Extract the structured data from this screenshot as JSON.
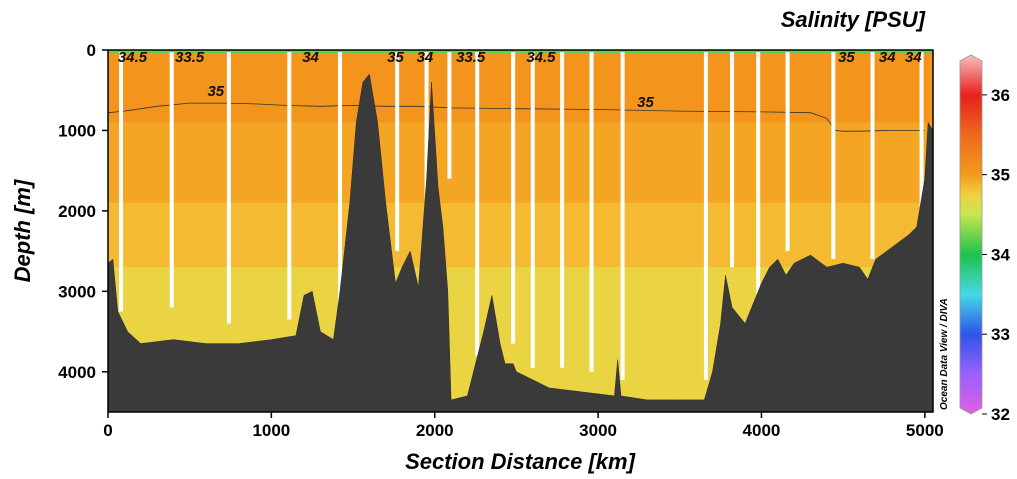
{
  "chart_data": {
    "type": "heatmap",
    "title": "Salinity [PSU]",
    "xlabel": "Section Distance [km]",
    "ylabel": "Depth [m]",
    "xlim": [
      0,
      5050
    ],
    "ylim": [
      0,
      4500
    ],
    "y_inverted": true,
    "x_ticks": [
      0,
      1000,
      2000,
      3000,
      4000,
      5000
    ],
    "y_ticks": [
      0,
      1000,
      2000,
      3000,
      4000
    ],
    "colorbar": {
      "min": 32,
      "max": 36.5,
      "ticks": [
        32,
        33,
        34,
        35,
        36
      ],
      "stops": [
        {
          "v": 32.0,
          "c": "#e060e0"
        },
        {
          "v": 32.5,
          "c": "#9a60ff"
        },
        {
          "v": 33.0,
          "c": "#2d55e8"
        },
        {
          "v": 33.5,
          "c": "#44d8e8"
        },
        {
          "v": 34.0,
          "c": "#1ec24a"
        },
        {
          "v": 34.5,
          "c": "#c8e650"
        },
        {
          "v": 34.75,
          "c": "#f2d040"
        },
        {
          "v": 35.0,
          "c": "#f49a1c"
        },
        {
          "v": 35.5,
          "c": "#ec6a1c"
        },
        {
          "v": 36.0,
          "c": "#e8201c"
        },
        {
          "v": 36.5,
          "c": "#f6c0c0"
        }
      ]
    },
    "salinity_layers": [
      {
        "depth_from": 0,
        "depth_to": 40,
        "value": 34.2
      },
      {
        "depth_from": 40,
        "depth_to": 900,
        "value": 35.05
      },
      {
        "depth_from": 900,
        "depth_to": 1900,
        "value": 34.95
      },
      {
        "depth_from": 1900,
        "depth_to": 2700,
        "value": 34.85
      },
      {
        "depth_from": 2700,
        "depth_to": 4500,
        "value": 34.7
      }
    ],
    "bathymetry": {
      "distance_km": [
        0,
        30,
        60,
        120,
        200,
        400,
        600,
        800,
        1000,
        1150,
        1200,
        1250,
        1300,
        1380,
        1420,
        1480,
        1520,
        1560,
        1600,
        1650,
        1700,
        1760,
        1800,
        1850,
        1900,
        1950,
        1980,
        2020,
        2050,
        2080,
        2100,
        2200,
        2300,
        2350,
        2400,
        2430,
        2480,
        2500,
        2600,
        2700,
        2900,
        3100,
        3120,
        3140,
        3300,
        3500,
        3650,
        3700,
        3750,
        3780,
        3820,
        3900,
        3960,
        4000,
        4050,
        4100,
        4150,
        4200,
        4300,
        4400,
        4500,
        4600,
        4650,
        4700,
        4800,
        4900,
        4950,
        5000,
        5020,
        5050
      ],
      "depth_m": [
        2650,
        2600,
        3250,
        3500,
        3650,
        3600,
        3650,
        3650,
        3600,
        3550,
        3050,
        3000,
        3500,
        3600,
        3000,
        1900,
        900,
        400,
        300,
        900,
        1900,
        2900,
        2700,
        2500,
        2950,
        1600,
        400,
        1700,
        2200,
        3000,
        4350,
        4300,
        3500,
        3050,
        3650,
        3900,
        3900,
        4000,
        4100,
        4200,
        4250,
        4300,
        3850,
        4300,
        4350,
        4350,
        4350,
        4000,
        3400,
        2800,
        3200,
        3400,
        3100,
        2900,
        2700,
        2600,
        2800,
        2650,
        2550,
        2700,
        2650,
        2700,
        2850,
        2600,
        2450,
        2300,
        2200,
        1600,
        900,
        1000
      ]
    },
    "station_casts": [
      {
        "distance_km": 80,
        "depth_m": 3250
      },
      {
        "distance_km": 390,
        "depth_m": 3200
      },
      {
        "distance_km": 740,
        "depth_m": 3400
      },
      {
        "distance_km": 1110,
        "depth_m": 3350
      },
      {
        "distance_km": 1420,
        "depth_m": 3400
      },
      {
        "distance_km": 1770,
        "depth_m": 2500
      },
      {
        "distance_km": 1950,
        "depth_m": 2700
      },
      {
        "distance_km": 2090,
        "depth_m": 1600
      },
      {
        "distance_km": 2260,
        "depth_m": 3800
      },
      {
        "distance_km": 2480,
        "depth_m": 3650
      },
      {
        "distance_km": 2600,
        "depth_m": 3950
      },
      {
        "distance_km": 2780,
        "depth_m": 3950
      },
      {
        "distance_km": 2960,
        "depth_m": 4000
      },
      {
        "distance_km": 3150,
        "depth_m": 4100
      },
      {
        "distance_km": 3660,
        "depth_m": 4100
      },
      {
        "distance_km": 3820,
        "depth_m": 2700
      },
      {
        "distance_km": 3980,
        "depth_m": 3200
      },
      {
        "distance_km": 4160,
        "depth_m": 2500
      },
      {
        "distance_km": 4440,
        "depth_m": 2600
      },
      {
        "distance_km": 4680,
        "depth_m": 2600
      },
      {
        "distance_km": 4980,
        "depth_m": 1950
      }
    ],
    "contour_35": {
      "distance_km": [
        0,
        100,
        300,
        500,
        700,
        900,
        1100,
        1300,
        1500,
        1700,
        1900,
        2100,
        2500,
        3000,
        3500,
        4000,
        4300,
        4400,
        4450,
        4500,
        4600,
        4800,
        5000
      ],
      "depth_m": [
        780,
        760,
        700,
        660,
        660,
        670,
        690,
        700,
        690,
        700,
        700,
        720,
        730,
        740,
        760,
        770,
        780,
        850,
        1000,
        1010,
        1010,
        1000,
        1000
      ]
    },
    "contour_labels": [
      {
        "text": "34.5",
        "distance_km": 150,
        "depth_m": 90
      },
      {
        "text": "33.5",
        "distance_km": 500,
        "depth_m": 0
      },
      {
        "text": "34",
        "distance_km": 1240,
        "depth_m": 10
      },
      {
        "text": "35",
        "distance_km": 1760,
        "depth_m": 150
      },
      {
        "text": "34",
        "distance_km": 1940,
        "depth_m": -10
      },
      {
        "text": "33.5",
        "distance_km": 2220,
        "depth_m": 60
      },
      {
        "text": "34.5",
        "distance_km": 2650,
        "depth_m": 90
      },
      {
        "text": "35",
        "distance_km": 660,
        "depth_m": 570
      },
      {
        "text": "35",
        "distance_km": 3290,
        "depth_m": 710
      },
      {
        "text": "35",
        "distance_km": 4520,
        "depth_m": 80
      },
      {
        "text": "34",
        "distance_km": 4770,
        "depth_m": 50
      },
      {
        "text": "34",
        "distance_km": 4930,
        "depth_m": 40
      }
    ],
    "credit": "Ocean Data View / DIVA"
  }
}
